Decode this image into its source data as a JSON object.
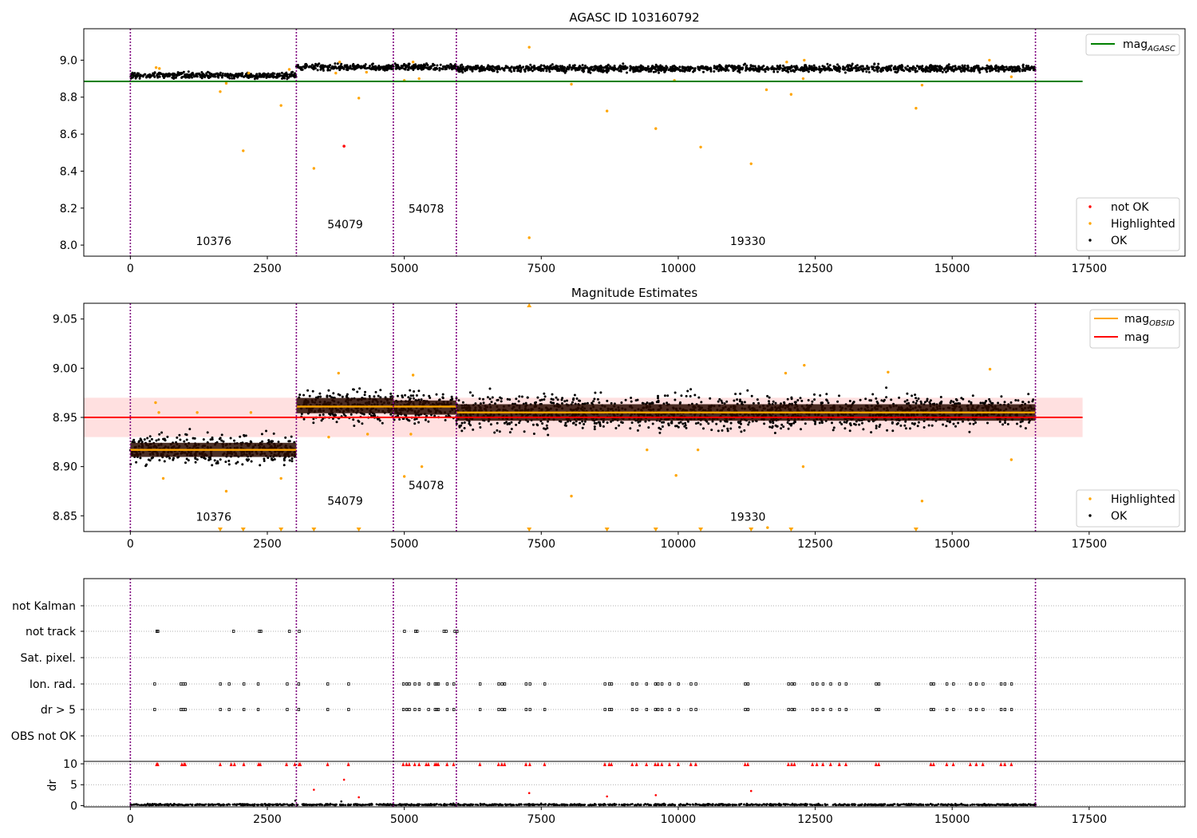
{
  "chart_data": [
    {
      "type": "scatter",
      "title": "AGASC ID 103160792",
      "x_ticks": [
        0,
        2500,
        5000,
        7500,
        10000,
        12500,
        15000,
        17500
      ],
      "xlim": [
        -850,
        19250
      ],
      "y_ticks": [
        "8.0",
        "8.2",
        "8.4",
        "8.6",
        "8.8",
        "9.0"
      ],
      "ylim": [
        7.94,
        9.17
      ],
      "obs_boundaries": [
        0,
        3030,
        4800,
        5950,
        16520
      ],
      "obs_labels": [
        {
          "text": "10376",
          "x": 1520,
          "y": 8.0
        },
        {
          "text": "54079",
          "x": 3920,
          "y": 8.09
        },
        {
          "text": "54078",
          "x": 5400,
          "y": 8.175
        },
        {
          "text": "19330",
          "x": 11270,
          "y": 8.0
        }
      ],
      "reference_line": {
        "name": "mag",
        "subscript": "AGASC",
        "value": 8.885,
        "x_range": [
          -850,
          17380
        ],
        "color": "#008000"
      },
      "ok_segments": [
        {
          "x0": 0,
          "x1": 3030,
          "center": 8.918,
          "spread": 0.013
        },
        {
          "x0": 3030,
          "x1": 4800,
          "center": 8.961,
          "spread": 0.014
        },
        {
          "x0": 4800,
          "x1": 5950,
          "center": 8.963,
          "spread": 0.013
        },
        {
          "x0": 5950,
          "x1": 16520,
          "center": 8.955,
          "spread": 0.015
        }
      ],
      "highlighted": [
        [
          470,
          8.96
        ],
        [
          530,
          8.955
        ],
        [
          1640,
          8.83
        ],
        [
          1750,
          8.875
        ],
        [
          2060,
          8.51
        ],
        [
          2160,
          8.93
        ],
        [
          2750,
          8.755
        ],
        [
          2900,
          8.95
        ],
        [
          3350,
          8.415
        ],
        [
          3750,
          8.93
        ],
        [
          3820,
          8.99
        ],
        [
          4170,
          8.795
        ],
        [
          4310,
          8.935
        ],
        [
          5000,
          8.89
        ],
        [
          5160,
          8.99
        ],
        [
          5270,
          8.9
        ],
        [
          7280,
          9.07
        ],
        [
          7280,
          8.04
        ],
        [
          8050,
          8.87
        ],
        [
          8700,
          8.725
        ],
        [
          9590,
          8.63
        ],
        [
          9930,
          8.89
        ],
        [
          10410,
          8.53
        ],
        [
          11330,
          8.44
        ],
        [
          11610,
          8.84
        ],
        [
          12060,
          8.815
        ],
        [
          12280,
          8.9
        ],
        [
          12300,
          9.0
        ],
        [
          14340,
          8.74
        ],
        [
          14450,
          8.865
        ],
        [
          15680,
          9.0
        ],
        [
          16080,
          8.91
        ],
        [
          11980,
          8.99
        ]
      ],
      "not_ok": [
        [
          3900,
          8.535
        ]
      ],
      "legend_upper": [
        {
          "label": "mag",
          "subscript": "AGASC",
          "color": "#008000"
        }
      ],
      "legend_lower": [
        {
          "label": "not OK",
          "color": "#ff0000"
        },
        {
          "label": "Highlighted",
          "color": "#ffa500"
        },
        {
          "label": "OK",
          "color": "#000000"
        }
      ]
    },
    {
      "type": "scatter",
      "title": "Magnitude Estimates",
      "x_ticks": [
        0,
        2500,
        5000,
        7500,
        10000,
        12500,
        15000,
        17500
      ],
      "xlim": [
        -850,
        19250
      ],
      "y_ticks": [
        "8.85",
        "8.90",
        "8.95",
        "9.00",
        "9.05"
      ],
      "ylim": [
        8.834,
        9.066
      ],
      "obs_boundaries": [
        0,
        3030,
        4800,
        5950,
        16520
      ],
      "obs_labels": [
        {
          "text": "10376",
          "x": 1520,
          "y": 8.845
        },
        {
          "text": "54079",
          "x": 3920,
          "y": 8.861
        },
        {
          "text": "54078",
          "x": 5400,
          "y": 8.877
        },
        {
          "text": "19330",
          "x": 11270,
          "y": 8.845
        }
      ],
      "mag_line": {
        "name": "mag",
        "value": 8.95,
        "band": [
          8.93,
          8.97
        ],
        "x_range": [
          -850,
          17380
        ],
        "color": "#ff0000"
      },
      "obsid_mags": [
        {
          "x0": 0,
          "x1": 3030,
          "value": 8.917
        },
        {
          "x0": 3030,
          "x1": 5950,
          "value": 8.961
        },
        {
          "x0": 5950,
          "x1": 16520,
          "value": 8.955
        }
      ],
      "ok_segments": [
        {
          "x0": 0,
          "x1": 3030,
          "center": 8.917,
          "spread": 0.012
        },
        {
          "x0": 3030,
          "x1": 4800,
          "center": 8.962,
          "spread": 0.013
        },
        {
          "x0": 4800,
          "x1": 5950,
          "center": 8.96,
          "spread": 0.012
        },
        {
          "x0": 5950,
          "x1": 16520,
          "center": 8.955,
          "spread": 0.014
        }
      ],
      "highlighted": [
        [
          460,
          8.965
        ],
        [
          520,
          8.955
        ],
        [
          600,
          8.888
        ],
        [
          1220,
          8.955
        ],
        [
          1750,
          8.875
        ],
        [
          2200,
          8.955
        ],
        [
          2750,
          8.888
        ],
        [
          3620,
          8.93
        ],
        [
          3800,
          8.995
        ],
        [
          4330,
          8.933
        ],
        [
          5000,
          8.89
        ],
        [
          5120,
          8.933
        ],
        [
          5160,
          8.993
        ],
        [
          5320,
          8.9
        ],
        [
          8050,
          8.87
        ],
        [
          9430,
          8.917
        ],
        [
          9960,
          8.891
        ],
        [
          10360,
          8.917
        ],
        [
          11630,
          8.838
        ],
        [
          11960,
          8.995
        ],
        [
          12280,
          8.9
        ],
        [
          12300,
          9.003
        ],
        [
          13830,
          8.996
        ],
        [
          14450,
          8.865
        ],
        [
          15690,
          8.999
        ],
        [
          16080,
          8.907
        ]
      ],
      "clipped_markers": [
        1640,
        2060,
        2750,
        3350,
        4170,
        7280,
        8700,
        9590,
        10410,
        11330,
        12060,
        14340
      ],
      "legend_upper": [
        {
          "label": "mag",
          "subscript": "OBSID",
          "color": "#ffa500"
        },
        {
          "label": "mag",
          "subscript": "",
          "color": "#ff0000"
        }
      ],
      "legend_lower": [
        {
          "label": "Highlighted",
          "color": "#ffa500"
        },
        {
          "label": "OK",
          "color": "#000000"
        }
      ]
    },
    {
      "type": "scatter",
      "flag_rows": [
        "not Kalman",
        "not track",
        "Sat. pixel.",
        "Ion. rad.",
        "dr > 5",
        "OBS not OK"
      ],
      "flag_events": {
        "not track": [
          480,
          500,
          1880,
          2350,
          2380,
          2900,
          3080,
          5000,
          5200,
          5230,
          5720,
          5760,
          5920,
          5960
        ],
        "Ion. rad.": [
          440,
          920,
          960,
          1000,
          1640,
          1800,
          2070,
          2330,
          2860,
          3070,
          3600,
          3980,
          4980,
          5040,
          5090,
          5190,
          5270,
          5440,
          5560,
          5590,
          5620,
          5780,
          5900,
          6380,
          6720,
          6780,
          6830,
          7220,
          7290,
          7560,
          8660,
          8740,
          8780,
          9160,
          9240,
          9420,
          9580,
          9630,
          9700,
          9840,
          10000,
          10230,
          10320,
          11220,
          11270,
          12010,
          12070,
          12120,
          12450,
          12530,
          12640,
          12780,
          12940,
          13060,
          13610,
          13660,
          14610,
          14660,
          14900,
          15020,
          15330,
          15440,
          15560,
          15890,
          15960,
          16080
        ],
        "dr > 5": [
          440,
          920,
          960,
          1000,
          1640,
          1800,
          2070,
          2330,
          2860,
          3070,
          3600,
          3980,
          4980,
          5040,
          5090,
          5190,
          5270,
          5440,
          5560,
          5590,
          5620,
          5780,
          5900,
          6380,
          6720,
          6780,
          6830,
          7220,
          7290,
          7560,
          8660,
          8740,
          8780,
          9160,
          9240,
          9420,
          9580,
          9630,
          9700,
          9840,
          10000,
          10230,
          10320,
          11220,
          11270,
          12010,
          12070,
          12120,
          12450,
          12530,
          12640,
          12780,
          12940,
          13060,
          13610,
          13660,
          14610,
          14660,
          14900,
          15020,
          15330,
          15440,
          15560,
          15890,
          15960,
          16080
        ]
      },
      "dr_ticks": [
        "0",
        "5",
        "10"
      ],
      "dr_ylim": [
        -0.3,
        10.2
      ],
      "dr_ylabel": "dr",
      "dr_clipped": [
        480,
        500,
        940,
        980,
        1000,
        1640,
        1840,
        1900,
        2070,
        2340,
        2370,
        2850,
        3000,
        3080,
        3100,
        3600,
        3980,
        4980,
        5040,
        5090,
        5190,
        5270,
        5400,
        5440,
        5560,
        5590,
        5620,
        5780,
        5900,
        6380,
        6720,
        6780,
        6830,
        7220,
        7290,
        7560,
        8660,
        8740,
        8780,
        9160,
        9240,
        9420,
        9580,
        9630,
        9700,
        9840,
        10000,
        10230,
        10320,
        11220,
        11270,
        12010,
        12070,
        12120,
        12450,
        12530,
        12640,
        12780,
        12940,
        13060,
        13610,
        13660,
        14610,
        14660,
        14900,
        15020,
        15330,
        15440,
        15560,
        15890,
        15960,
        16080
      ],
      "dr_outliers": [
        [
          3350,
          3.8
        ],
        [
          3900,
          6.2
        ],
        [
          4170,
          2.0
        ],
        [
          7280,
          3.0
        ],
        [
          8700,
          2.2
        ],
        [
          9590,
          2.5
        ],
        [
          11330,
          3.5
        ],
        [
          3010,
          1.2
        ],
        [
          3850,
          1.0
        ]
      ],
      "x_ticks": [
        0,
        2500,
        5000,
        7500,
        10000,
        12500,
        15000,
        17500
      ],
      "xlim": [
        -850,
        19250
      ],
      "obs_boundaries": [
        0,
        3030,
        4800,
        5950,
        16520
      ]
    }
  ]
}
